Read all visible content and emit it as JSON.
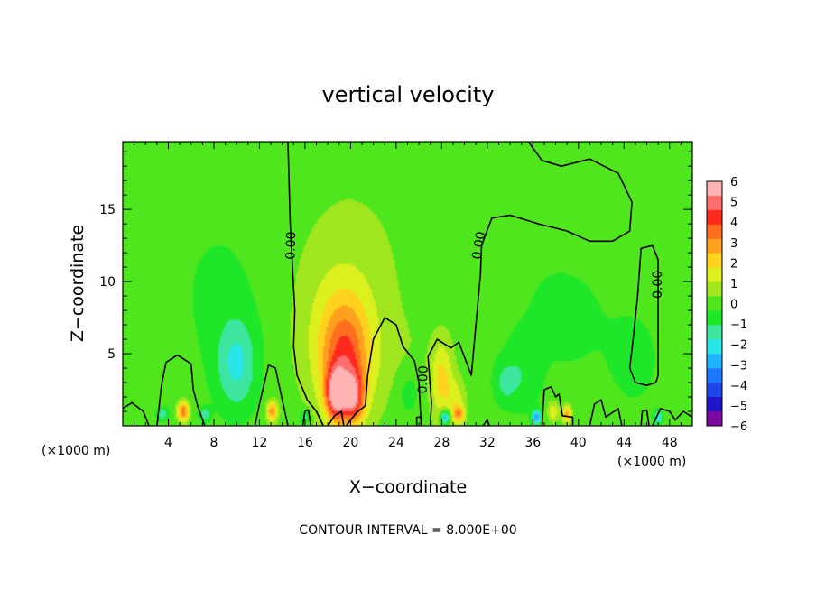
{
  "chart_data": {
    "type": "heatmap",
    "title": "vertical velocity",
    "xlabel": "X−coordinate",
    "ylabel": "Z−coordinate",
    "x_units_left": "(×1000 m)",
    "x_units_right": "(×1000 m)",
    "footer": "CONTOUR INTERVAL = 8.000E+00",
    "xlim": [
      0,
      50
    ],
    "ylim": [
      0,
      19.7
    ],
    "x_ticks": [
      4,
      8,
      12,
      16,
      20,
      24,
      28,
      32,
      36,
      40,
      44,
      48
    ],
    "x_tick_labels": [
      "4",
      "8",
      "12",
      "16",
      "20",
      "24",
      "28",
      "32",
      "36",
      "40",
      "44",
      "48"
    ],
    "y_ticks": [
      5,
      10,
      15
    ],
    "y_tick_labels": [
      "5",
      "10",
      "15"
    ],
    "grid": false,
    "contour_label": "0.00",
    "colorbar": {
      "min": -6,
      "max": 6,
      "tick_labels": [
        "6",
        "5",
        "4",
        "3",
        "2",
        "1",
        "0",
        "−1",
        "−2",
        "−3",
        "−4",
        "−5",
        "−6"
      ],
      "colors": [
        "#7d0aa0",
        "#1f14c8",
        "#1e46e6",
        "#1e78ff",
        "#1eb4ff",
        "#28e6e6",
        "#3ce6a0",
        "#1ee628",
        "#50e61e",
        "#a0e61e",
        "#dcf01e",
        "#ffd21e",
        "#ffa01e",
        "#ff6e1e",
        "#ff2a1e",
        "#ff6e6e",
        "#ffb4b4"
      ]
    },
    "features": [
      {
        "kind": "updraft",
        "x": 19.5,
        "z": 4.0,
        "sx": 2.0,
        "sz": 4.0,
        "w": 3.0
      },
      {
        "kind": "updraft",
        "x": 19.2,
        "z": 6.0,
        "sx": 3.5,
        "sz": 5.0,
        "w": 1.4
      },
      {
        "kind": "updraft",
        "x": 18.7,
        "z": 2.2,
        "sx": 0.8,
        "sz": 1.6,
        "w": 4.5
      },
      {
        "kind": "updraft",
        "x": 20.2,
        "z": 2.0,
        "sx": 0.9,
        "sz": 1.6,
        "w": 3.5
      },
      {
        "kind": "updraft",
        "x": 20.0,
        "z": 11.0,
        "sx": 5.0,
        "sz": 7.0,
        "w": 0.5
      },
      {
        "kind": "updraft",
        "x": 28.0,
        "z": 3.2,
        "sx": 1.0,
        "sz": 2.8,
        "w": 2.0
      },
      {
        "kind": "updraft",
        "x": 29.3,
        "z": 1.8,
        "sx": 0.8,
        "sz": 1.5,
        "w": 1.2
      },
      {
        "kind": "updraft",
        "x": 29.5,
        "z": 0.8,
        "sx": 0.5,
        "sz": 0.6,
        "w": 2.5
      },
      {
        "kind": "updraft",
        "x": 5.3,
        "z": 1.0,
        "sx": 0.5,
        "sz": 0.7,
        "w": 3.5
      },
      {
        "kind": "updraft",
        "x": 13.1,
        "z": 1.0,
        "sx": 0.5,
        "sz": 0.7,
        "w": 3.0
      },
      {
        "kind": "updraft",
        "x": 37.8,
        "z": 1.0,
        "sx": 0.5,
        "sz": 0.7,
        "w": 1.8
      },
      {
        "kind": "updraft",
        "x": 39.0,
        "z": 0.8,
        "sx": 0.4,
        "sz": 0.6,
        "w": 3.0
      },
      {
        "kind": "updraft",
        "x": 24.5,
        "z": 4.0,
        "sx": 2.0,
        "sz": 3.0,
        "w": 0.4
      },
      {
        "kind": "downdraft",
        "x": 10.0,
        "z": 4.2,
        "sx": 1.8,
        "sz": 3.2,
        "w": -1.8
      },
      {
        "kind": "downdraft",
        "x": 8.5,
        "z": 9.0,
        "sx": 4.0,
        "sz": 6.0,
        "w": -0.5
      },
      {
        "kind": "downdraft",
        "x": 39.0,
        "z": 8.0,
        "sx": 5.5,
        "sz": 6.0,
        "w": -0.5
      },
      {
        "kind": "downdraft",
        "x": 35.0,
        "z": 3.5,
        "sx": 1.5,
        "sz": 2.5,
        "w": -0.8
      },
      {
        "kind": "downdraft",
        "x": 25.0,
        "z": 2.5,
        "sx": 1.2,
        "sz": 2.0,
        "w": -0.9
      },
      {
        "kind": "downdraft",
        "x": 33.5,
        "z": 3.0,
        "sx": 1.0,
        "sz": 1.5,
        "w": -1.0
      },
      {
        "kind": "downdraft",
        "x": 28.3,
        "z": 0.6,
        "sx": 0.4,
        "sz": 0.5,
        "w": -3.5
      },
      {
        "kind": "downdraft",
        "x": 36.3,
        "z": 0.6,
        "sx": 0.4,
        "sz": 0.5,
        "w": -3.0
      },
      {
        "kind": "downdraft",
        "x": 47.0,
        "z": 0.6,
        "sx": 0.4,
        "sz": 0.5,
        "w": -2.0
      },
      {
        "kind": "downdraft",
        "x": 3.5,
        "z": 0.8,
        "sx": 0.5,
        "sz": 0.5,
        "w": -1.5
      },
      {
        "kind": "downdraft",
        "x": 7.2,
        "z": 0.8,
        "sx": 0.5,
        "sz": 0.5,
        "w": -1.5
      },
      {
        "kind": "downdraft",
        "x": 16.0,
        "z": 0.6,
        "sx": 0.5,
        "sz": 0.5,
        "w": -1.5
      },
      {
        "kind": "downdraft",
        "x": 45.0,
        "z": 4.5,
        "sx": 2.0,
        "sz": 3.0,
        "w": -0.6
      },
      {
        "kind": "updraft",
        "x": 43.0,
        "z": 13.0,
        "sx": 6.0,
        "sz": 4.0,
        "w": 0.15
      }
    ],
    "zero_contours": [
      {
        "id": "c1",
        "path": [
          [
            0,
            1.2
          ],
          [
            0.8,
            1.6
          ],
          [
            1.8,
            1.0
          ],
          [
            2.3,
            0
          ]
        ]
      },
      {
        "id": "c2",
        "path": [
          [
            3.0,
            0
          ],
          [
            3.4,
            2.8
          ],
          [
            3.8,
            4.4
          ],
          [
            4.8,
            4.9
          ],
          [
            6.0,
            4.3
          ],
          [
            6.2,
            2.5
          ],
          [
            6.6,
            1.3
          ],
          [
            7.2,
            0
          ]
        ]
      },
      {
        "id": "c3",
        "path": [
          [
            11.6,
            0
          ],
          [
            12.0,
            1.5
          ],
          [
            12.8,
            4.2
          ],
          [
            13.4,
            4.0
          ],
          [
            14.0,
            1.8
          ],
          [
            14.5,
            0
          ]
        ]
      },
      {
        "id": "c4",
        "path": [
          [
            15.8,
            0
          ],
          [
            16.0,
            1.0
          ],
          [
            16.3,
            1.1
          ],
          [
            16.5,
            0
          ]
        ]
      },
      {
        "id": "c5",
        "path": [
          [
            14.5,
            19.7
          ],
          [
            14.7,
            14.0
          ],
          [
            15.1,
            8.0
          ],
          [
            15.0,
            5.5
          ],
          [
            15.3,
            3.5
          ],
          [
            16.2,
            1.8
          ],
          [
            17.0,
            1.0
          ],
          [
            17.6,
            0
          ]
        ]
      },
      {
        "id": "c6",
        "path": [
          [
            18.0,
            0
          ],
          [
            18.6,
            0.7
          ],
          [
            19.2,
            1.0
          ],
          [
            19.4,
            0
          ]
        ]
      },
      {
        "id": "c7",
        "path": [
          [
            19.6,
            0
          ],
          [
            20.5,
            0.9
          ],
          [
            21.3,
            1.4
          ],
          [
            21.5,
            3.5
          ],
          [
            22.0,
            6.0
          ],
          [
            23.0,
            7.5
          ],
          [
            24.0,
            7.0
          ],
          [
            24.6,
            5.5
          ],
          [
            25.6,
            4.5
          ],
          [
            26.0,
            3.0
          ],
          [
            26.2,
            0
          ]
        ]
      },
      {
        "id": "c8",
        "path": [
          [
            27.0,
            0
          ],
          [
            27.1,
            1.6
          ],
          [
            26.8,
            4.8
          ],
          [
            27.6,
            6.0
          ],
          [
            28.8,
            5.4
          ],
          [
            29.5,
            5.8
          ],
          [
            30.6,
            3.5
          ],
          [
            31.0,
            7.0
          ],
          [
            31.4,
            10.5
          ],
          [
            31.5,
            12.5
          ],
          [
            32.4,
            14.4
          ],
          [
            34.0,
            14.6
          ],
          [
            36.5,
            14.0
          ],
          [
            39.0,
            13.5
          ],
          [
            41.0,
            12.8
          ],
          [
            43.0,
            12.8
          ],
          [
            44.5,
            13.5
          ],
          [
            44.7,
            15.5
          ],
          [
            43.5,
            17.5
          ],
          [
            41.0,
            18.5
          ],
          [
            38.5,
            18.0
          ],
          [
            36.8,
            18.4
          ],
          [
            35.6,
            19.7
          ]
        ]
      },
      {
        "id": "c9",
        "path": [
          [
            32.2,
            0
          ],
          [
            32.0,
            0.4
          ],
          [
            31.6,
            0
          ]
        ]
      },
      {
        "id": "c10",
        "path": [
          [
            36.8,
            0
          ],
          [
            37.0,
            2.5
          ],
          [
            37.6,
            2.7
          ],
          [
            38.0,
            2.0
          ],
          [
            38.3,
            2.2
          ],
          [
            38.6,
            0.7
          ],
          [
            39.5,
            0.6
          ],
          [
            39.5,
            0
          ]
        ]
      },
      {
        "id": "c11",
        "path": [
          [
            41.0,
            0
          ],
          [
            41.4,
            1.5
          ],
          [
            42.0,
            1.8
          ],
          [
            42.4,
            0.6
          ],
          [
            43.5,
            1.2
          ],
          [
            43.8,
            0
          ]
        ]
      },
      {
        "id": "c12",
        "path": [
          [
            45.5,
            0
          ],
          [
            45.6,
            1.0
          ],
          [
            46.0,
            1.1
          ],
          [
            46.2,
            0
          ]
        ]
      },
      {
        "id": "c13",
        "path": [
          [
            46.5,
            0
          ],
          [
            47.2,
            1.2
          ],
          [
            48.0,
            1.0
          ],
          [
            48.5,
            0.4
          ],
          [
            49.2,
            1.0
          ],
          [
            50,
            0.6
          ]
        ]
      },
      {
        "id": "c14",
        "path": [
          [
            47.0,
            3.5
          ],
          [
            47.0,
            8.5
          ],
          [
            47.0,
            11.5
          ],
          [
            46.5,
            12.5
          ],
          [
            45.5,
            12.3
          ],
          [
            45.2,
            9.0
          ],
          [
            44.8,
            6.0
          ],
          [
            44.5,
            4.0
          ],
          [
            45.0,
            3.0
          ],
          [
            46.0,
            2.8
          ],
          [
            46.8,
            3.0
          ],
          [
            47.0,
            3.5
          ]
        ]
      },
      {
        "id": "c15",
        "path": [
          [
            25.8,
            0
          ],
          [
            25.8,
            0.6
          ],
          [
            26.2,
            0.6
          ],
          [
            26.2,
            0
          ]
        ]
      }
    ],
    "contour_label_positions": [
      {
        "x": 14.8,
        "z": 12.5,
        "angle": -88
      },
      {
        "x": 31.3,
        "z": 12.5,
        "angle": -80
      },
      {
        "x": 26.4,
        "z": 3.2,
        "angle": -88
      },
      {
        "x": 47.0,
        "z": 9.8,
        "angle": -90
      }
    ]
  }
}
